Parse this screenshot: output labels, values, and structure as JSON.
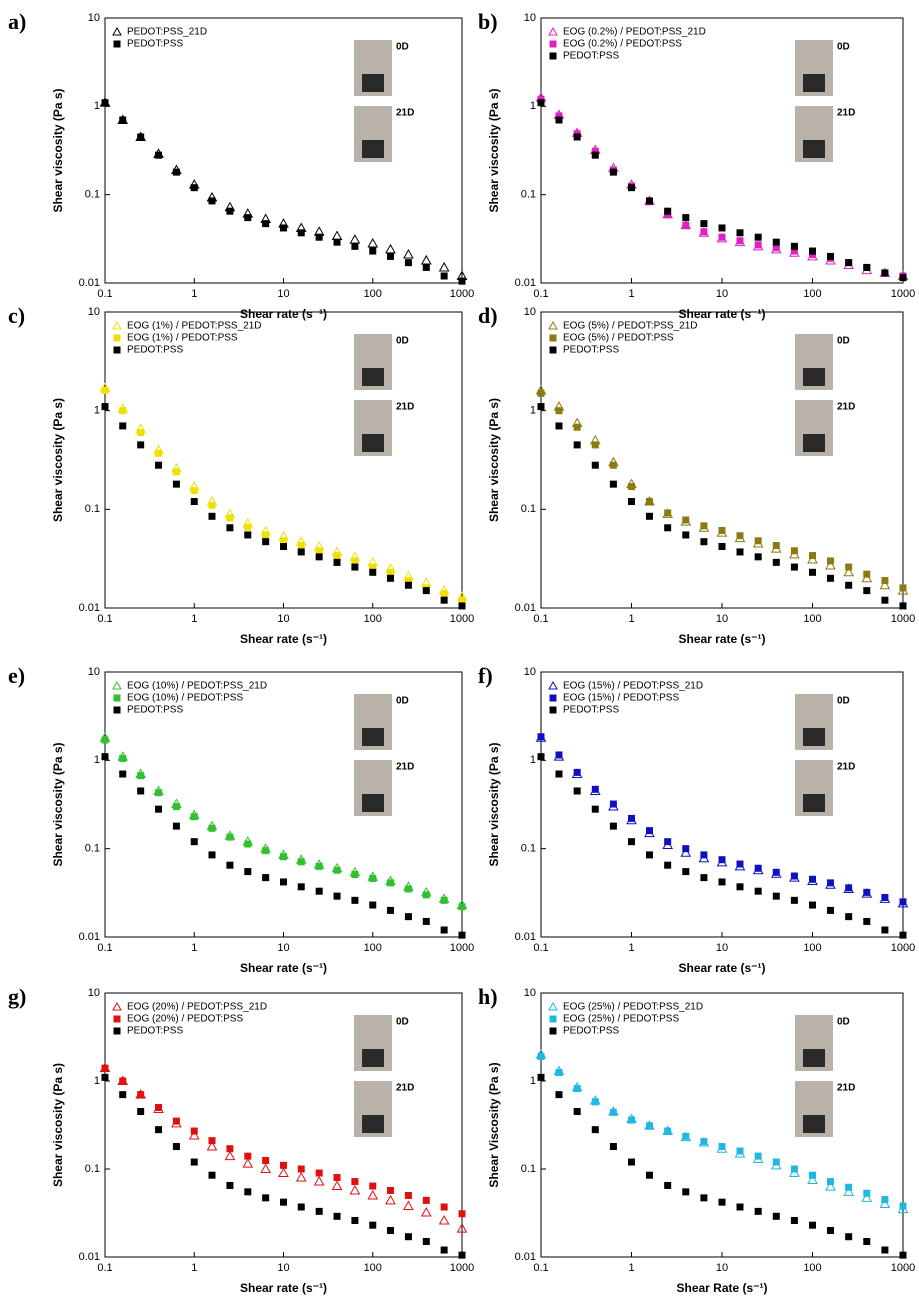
{
  "chart_data": [
    {
      "type": "scatter",
      "panel_label": "a)",
      "x_label": "Shear rate (s⁻¹)",
      "y_label": "Shear viscosity (Pa s)",
      "xscale": "log",
      "yscale": "log",
      "xlim": [
        0.1,
        1000
      ],
      "ylim": [
        0.01,
        10
      ],
      "xticks": [
        0.1,
        1,
        10,
        100,
        1000
      ],
      "yticks": [
        0.01,
        0.1,
        1,
        10
      ],
      "legend": "upper left",
      "photo_labels": [
        "0D",
        "21D"
      ],
      "x": [
        0.1,
        0.158,
        0.251,
        0.398,
        0.631,
        1,
        1.58,
        2.51,
        3.98,
        6.31,
        10,
        15.8,
        25.1,
        39.8,
        63.1,
        100,
        158,
        251,
        398,
        631,
        1000
      ],
      "series": [
        {
          "name": "PEDOT:PSS_21D",
          "color": "#000000",
          "marker": "triangle-open",
          "values": [
            1.1,
            0.7,
            0.45,
            0.29,
            0.19,
            0.13,
            0.093,
            0.072,
            0.061,
            0.053,
            0.047,
            0.042,
            0.038,
            0.034,
            0.031,
            0.028,
            0.024,
            0.021,
            0.018,
            0.015,
            0.012
          ]
        },
        {
          "name": "PEDOT:PSS",
          "color": "#000000",
          "marker": "square",
          "values": [
            1.1,
            0.7,
            0.45,
            0.28,
            0.18,
            0.12,
            0.085,
            0.065,
            0.055,
            0.047,
            0.042,
            0.037,
            0.033,
            0.029,
            0.026,
            0.023,
            0.02,
            0.017,
            0.015,
            0.012,
            0.0105
          ]
        }
      ]
    },
    {
      "type": "scatter",
      "panel_label": "b)",
      "x_label": "Shear rate (s⁻¹)",
      "y_label": "Shear viscosity (Pa s)",
      "xscale": "log",
      "yscale": "log",
      "xlim": [
        0.1,
        1000
      ],
      "ylim": [
        0.01,
        10
      ],
      "xticks": [
        0.1,
        1,
        10,
        100,
        1000
      ],
      "yticks": [
        0.01,
        0.1,
        1,
        10
      ],
      "legend": "upper left",
      "photo_labels": [
        "0D",
        "21D"
      ],
      "x": [
        0.1,
        0.158,
        0.251,
        0.398,
        0.631,
        1,
        1.58,
        2.51,
        3.98,
        6.31,
        10,
        15.8,
        25.1,
        39.8,
        63.1,
        100,
        158,
        251,
        398,
        631,
        1000
      ],
      "series": [
        {
          "name": "EOG (0.2%) / PEDOT:PSS_21D",
          "color": "#e020c0",
          "marker": "triangle-open",
          "values": [
            1.25,
            0.8,
            0.5,
            0.32,
            0.2,
            0.13,
            0.085,
            0.06,
            0.045,
            0.037,
            0.032,
            0.029,
            0.026,
            0.024,
            0.022,
            0.02,
            0.018,
            0.016,
            0.014,
            0.013,
            0.012
          ]
        },
        {
          "name": "EOG (0.2%) / PEDOT:PSS",
          "color": "#e020c0",
          "marker": "square",
          "values": [
            1.2,
            0.78,
            0.49,
            0.31,
            0.19,
            0.125,
            0.083,
            0.059,
            0.045,
            0.038,
            0.033,
            0.03,
            0.027,
            0.025,
            0.023,
            0.021,
            0.019,
            0.017,
            0.015,
            0.013,
            0.012
          ]
        },
        {
          "name": "PEDOT:PSS",
          "color": "#000000",
          "marker": "square",
          "values": [
            1.1,
            0.7,
            0.45,
            0.28,
            0.18,
            0.12,
            0.085,
            0.065,
            0.055,
            0.047,
            0.042,
            0.037,
            0.033,
            0.029,
            0.026,
            0.023,
            0.02,
            0.017,
            0.015,
            0.013,
            0.0115
          ]
        }
      ]
    },
    {
      "type": "scatter",
      "panel_label": "c)",
      "x_label": "Shear rate (s⁻¹)",
      "y_label": "Shear viscosity (Pa s)",
      "xscale": "log",
      "yscale": "log",
      "xlim": [
        0.1,
        1000
      ],
      "ylim": [
        0.01,
        10
      ],
      "xticks": [
        0.1,
        1,
        10,
        100,
        1000
      ],
      "yticks": [
        0.01,
        0.1,
        1,
        10
      ],
      "legend": "upper left",
      "photo_labels": [
        "0D",
        "21D"
      ],
      "x": [
        0.1,
        0.158,
        0.251,
        0.398,
        0.631,
        1,
        1.58,
        2.51,
        3.98,
        6.31,
        10,
        15.8,
        25.1,
        39.8,
        63.1,
        100,
        158,
        251,
        398,
        631,
        1000
      ],
      "series": [
        {
          "name": "EOG (1%) / PEDOT:PSS_21D",
          "color": "#f0e000",
          "marker": "triangle-open",
          "values": [
            1.7,
            1.05,
            0.65,
            0.4,
            0.26,
            0.17,
            0.12,
            0.09,
            0.072,
            0.06,
            0.053,
            0.047,
            0.042,
            0.037,
            0.033,
            0.029,
            0.025,
            0.021,
            0.018,
            0.015,
            0.013
          ]
        },
        {
          "name": "EOG (1%) / PEDOT:PSS",
          "color": "#f0e000",
          "marker": "square",
          "values": [
            1.6,
            1.0,
            0.6,
            0.37,
            0.24,
            0.155,
            0.11,
            0.082,
            0.066,
            0.055,
            0.048,
            0.043,
            0.038,
            0.034,
            0.03,
            0.026,
            0.023,
            0.019,
            0.016,
            0.014,
            0.012
          ]
        },
        {
          "name": "PEDOT:PSS",
          "color": "#000000",
          "marker": "square",
          "values": [
            1.1,
            0.7,
            0.45,
            0.28,
            0.18,
            0.12,
            0.085,
            0.065,
            0.055,
            0.047,
            0.042,
            0.037,
            0.033,
            0.029,
            0.026,
            0.023,
            0.02,
            0.017,
            0.015,
            0.012,
            0.0105
          ]
        }
      ]
    },
    {
      "type": "scatter",
      "panel_label": "d)",
      "x_label": "Shear rate (s⁻¹)",
      "y_label": "Shear viscosity (Pa s)",
      "xscale": "log",
      "yscale": "log",
      "xlim": [
        0.1,
        1000
      ],
      "ylim": [
        0.01,
        10
      ],
      "xticks": [
        0.1,
        1,
        10,
        100,
        1000
      ],
      "yticks": [
        0.01,
        0.1,
        1,
        10
      ],
      "legend": "upper left",
      "photo_labels": [
        "0D",
        "21D"
      ],
      "x": [
        0.1,
        0.158,
        0.251,
        0.398,
        0.631,
        1,
        1.58,
        2.51,
        3.98,
        6.31,
        10,
        15.8,
        25.1,
        39.8,
        63.1,
        100,
        158,
        251,
        398,
        631,
        1000
      ],
      "series": [
        {
          "name": "EOG (5%) / PEDOT:PSS_21D",
          "color": "#8a7a10",
          "marker": "triangle-open",
          "values": [
            1.6,
            1.1,
            0.75,
            0.5,
            0.3,
            0.18,
            0.12,
            0.09,
            0.075,
            0.065,
            0.058,
            0.051,
            0.045,
            0.04,
            0.035,
            0.031,
            0.027,
            0.023,
            0.02,
            0.017,
            0.015
          ]
        },
        {
          "name": "EOG (5%) / PEDOT:PSS",
          "color": "#8a7a10",
          "marker": "square",
          "values": [
            1.5,
            1.0,
            0.68,
            0.45,
            0.28,
            0.17,
            0.12,
            0.092,
            0.078,
            0.068,
            0.061,
            0.054,
            0.048,
            0.043,
            0.038,
            0.034,
            0.03,
            0.026,
            0.022,
            0.019,
            0.016
          ]
        },
        {
          "name": "PEDOT:PSS",
          "color": "#000000",
          "marker": "square",
          "values": [
            1.1,
            0.7,
            0.45,
            0.28,
            0.18,
            0.12,
            0.085,
            0.065,
            0.055,
            0.047,
            0.042,
            0.037,
            0.033,
            0.029,
            0.026,
            0.023,
            0.02,
            0.017,
            0.015,
            0.012,
            0.0105
          ]
        }
      ]
    },
    {
      "type": "scatter",
      "panel_label": "e)",
      "x_label": "Shear rate (s⁻¹)",
      "y_label": "Shear viscosity (Pa s)",
      "xscale": "log",
      "yscale": "log",
      "xlim": [
        0.1,
        1000
      ],
      "ylim": [
        0.01,
        10
      ],
      "xticks": [
        0.1,
        1,
        10,
        100,
        1000
      ],
      "yticks": [
        0.01,
        0.1,
        1,
        10
      ],
      "legend": "upper left",
      "photo_labels": [
        "0D",
        "21D"
      ],
      "x": [
        0.1,
        0.158,
        0.251,
        0.398,
        0.631,
        1,
        1.58,
        2.51,
        3.98,
        6.31,
        10,
        15.8,
        25.1,
        39.8,
        63.1,
        100,
        158,
        251,
        398,
        631,
        1000
      ],
      "series": [
        {
          "name": "EOG (10%) / PEDOT:PSS_21D",
          "color": "#30c030",
          "marker": "triangle-open",
          "values": [
            1.8,
            1.1,
            0.7,
            0.45,
            0.32,
            0.24,
            0.18,
            0.14,
            0.12,
            0.1,
            0.085,
            0.075,
            0.066,
            0.06,
            0.054,
            0.048,
            0.043,
            0.037,
            0.032,
            0.027,
            0.023
          ]
        },
        {
          "name": "EOG (10%) / PEDOT:PSS",
          "color": "#30c030",
          "marker": "square",
          "values": [
            1.7,
            1.05,
            0.67,
            0.43,
            0.3,
            0.23,
            0.17,
            0.135,
            0.113,
            0.095,
            0.081,
            0.071,
            0.063,
            0.057,
            0.051,
            0.046,
            0.041,
            0.035,
            0.03,
            0.026,
            0.022
          ]
        },
        {
          "name": "PEDOT:PSS",
          "color": "#000000",
          "marker": "square",
          "values": [
            1.1,
            0.7,
            0.45,
            0.28,
            0.18,
            0.12,
            0.085,
            0.065,
            0.055,
            0.047,
            0.042,
            0.037,
            0.033,
            0.029,
            0.026,
            0.023,
            0.02,
            0.017,
            0.015,
            0.012,
            0.0105
          ]
        }
      ]
    },
    {
      "type": "scatter",
      "panel_label": "f)",
      "x_label": "Shear rate (s⁻¹)",
      "y_label": "Shear viscosity (Pa s)",
      "xscale": "log",
      "yscale": "log",
      "xlim": [
        0.1,
        1000
      ],
      "ylim": [
        0.01,
        10
      ],
      "xticks": [
        0.1,
        1,
        10,
        100,
        1000
      ],
      "yticks": [
        0.01,
        0.1,
        1,
        10
      ],
      "legend": "upper left",
      "photo_labels": [
        "0D",
        "21D"
      ],
      "x": [
        0.1,
        0.158,
        0.251,
        0.398,
        0.631,
        1,
        1.58,
        2.51,
        3.98,
        6.31,
        10,
        15.8,
        25.1,
        39.8,
        63.1,
        100,
        158,
        251,
        398,
        631,
        1000
      ],
      "series": [
        {
          "name": "EOG (15%) / PEDOT:PSS_21D",
          "color": "#1010c0",
          "marker": "triangle-open",
          "values": [
            1.8,
            1.1,
            0.7,
            0.45,
            0.3,
            0.21,
            0.15,
            0.11,
            0.09,
            0.078,
            0.07,
            0.063,
            0.057,
            0.052,
            0.047,
            0.043,
            0.039,
            0.035,
            0.031,
            0.027,
            0.024
          ]
        },
        {
          "name": "EOG (15%) / PEDOT:PSS",
          "color": "#1010c0",
          "marker": "square",
          "values": [
            1.85,
            1.15,
            0.73,
            0.47,
            0.32,
            0.22,
            0.16,
            0.12,
            0.1,
            0.085,
            0.075,
            0.067,
            0.06,
            0.054,
            0.049,
            0.045,
            0.041,
            0.036,
            0.032,
            0.028,
            0.025
          ]
        },
        {
          "name": "PEDOT:PSS",
          "color": "#000000",
          "marker": "square",
          "values": [
            1.1,
            0.7,
            0.45,
            0.28,
            0.18,
            0.12,
            0.085,
            0.065,
            0.055,
            0.047,
            0.042,
            0.037,
            0.033,
            0.029,
            0.026,
            0.023,
            0.02,
            0.017,
            0.015,
            0.012,
            0.0105
          ]
        }
      ]
    },
    {
      "type": "scatter",
      "panel_label": "g)",
      "x_label": "Shear rate (s⁻¹)",
      "y_label": "Shear viscosity (Pa s)",
      "xscale": "log",
      "yscale": "log",
      "xlim": [
        0.1,
        1000
      ],
      "ylim": [
        0.01,
        10
      ],
      "xticks": [
        0.1,
        1,
        10,
        100,
        1000
      ],
      "yticks": [
        0.01,
        0.1,
        1,
        10
      ],
      "legend": "upper left",
      "photo_labels": [
        "0D",
        "21D"
      ],
      "x": [
        0.1,
        0.158,
        0.251,
        0.398,
        0.631,
        1,
        1.58,
        2.51,
        3.98,
        6.31,
        10,
        15.8,
        25.1,
        39.8,
        63.1,
        100,
        158,
        251,
        398,
        631,
        1000
      ],
      "series": [
        {
          "name": "EOG (20%) / PEDOT:PSS_21D",
          "color": "#e01010",
          "marker": "triangle-open",
          "values": [
            1.4,
            1.0,
            0.7,
            0.48,
            0.33,
            0.24,
            0.18,
            0.14,
            0.115,
            0.1,
            0.09,
            0.08,
            0.072,
            0.064,
            0.057,
            0.05,
            0.044,
            0.038,
            0.032,
            0.026,
            0.021
          ]
        },
        {
          "name": "EOG (20%) / PEDOT:PSS",
          "color": "#e01010",
          "marker": "square",
          "values": [
            1.4,
            1.0,
            0.7,
            0.5,
            0.35,
            0.27,
            0.21,
            0.17,
            0.14,
            0.125,
            0.11,
            0.1,
            0.09,
            0.08,
            0.072,
            0.064,
            0.057,
            0.05,
            0.044,
            0.037,
            0.031
          ]
        },
        {
          "name": "PEDOT:PSS",
          "color": "#000000",
          "marker": "square",
          "values": [
            1.1,
            0.7,
            0.45,
            0.28,
            0.18,
            0.12,
            0.085,
            0.065,
            0.055,
            0.047,
            0.042,
            0.037,
            0.033,
            0.029,
            0.026,
            0.023,
            0.02,
            0.017,
            0.015,
            0.012,
            0.0105
          ]
        }
      ]
    },
    {
      "type": "scatter",
      "panel_label": "h)",
      "x_label": "Shear Rate (s⁻¹)",
      "y_label": "Shear Viscosity (Pa s)",
      "xscale": "log",
      "yscale": "log",
      "xlim": [
        0.1,
        1000
      ],
      "ylim": [
        0.01,
        10
      ],
      "xticks": [
        0.1,
        1,
        10,
        100,
        1000
      ],
      "yticks": [
        0.01,
        0.1,
        1,
        10
      ],
      "legend": "upper left",
      "photo_labels": [
        "0D",
        "21D"
      ],
      "x": [
        0.1,
        0.158,
        0.251,
        0.398,
        0.631,
        1,
        1.58,
        2.51,
        3.98,
        6.31,
        10,
        15.8,
        25.1,
        39.8,
        63.1,
        100,
        158,
        251,
        398,
        631,
        1000
      ],
      "series": [
        {
          "name": "EOG (25%) / PEDOT:PSS_21D",
          "color": "#20b8e0",
          "marker": "triangle-open",
          "values": [
            2.0,
            1.3,
            0.85,
            0.6,
            0.45,
            0.37,
            0.31,
            0.27,
            0.23,
            0.2,
            0.17,
            0.15,
            0.13,
            0.11,
            0.09,
            0.075,
            0.063,
            0.055,
            0.047,
            0.04,
            0.035
          ]
        },
        {
          "name": "EOG (25%) / PEDOT:PSS",
          "color": "#20b8e0",
          "marker": "square",
          "values": [
            1.9,
            1.25,
            0.82,
            0.58,
            0.44,
            0.36,
            0.31,
            0.27,
            0.235,
            0.205,
            0.18,
            0.16,
            0.14,
            0.12,
            0.1,
            0.085,
            0.072,
            0.062,
            0.053,
            0.045,
            0.038
          ]
        },
        {
          "name": "PEDOT:PSS",
          "color": "#000000",
          "marker": "square",
          "values": [
            1.1,
            0.7,
            0.45,
            0.28,
            0.18,
            0.12,
            0.085,
            0.065,
            0.055,
            0.047,
            0.042,
            0.037,
            0.033,
            0.029,
            0.026,
            0.023,
            0.02,
            0.017,
            0.015,
            0.012,
            0.0105
          ]
        }
      ]
    }
  ]
}
